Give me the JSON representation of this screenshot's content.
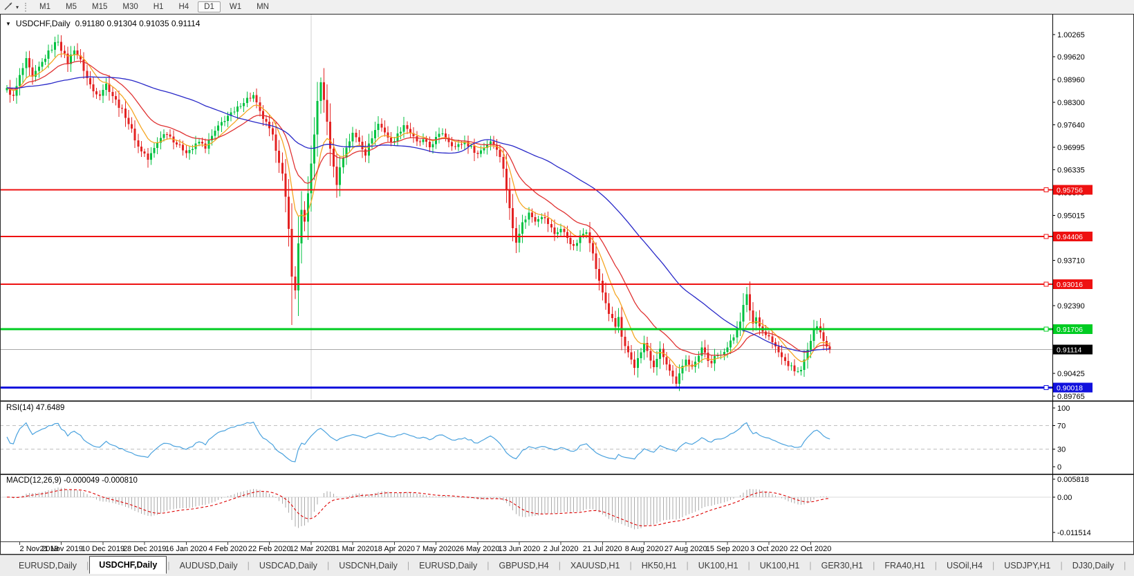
{
  "toolbar": {
    "tool_caret": "▾",
    "timeframes": [
      "M1",
      "M5",
      "M15",
      "M30",
      "H1",
      "H4",
      "D1",
      "W1",
      "MN"
    ],
    "active_timeframe": "D1"
  },
  "chart": {
    "dropdown_icon": "▼",
    "title": "USDCHF,Daily",
    "ohlc": "0.91180 0.91304 0.91035 0.91114"
  },
  "panels": {
    "rsi_label": "RSI(14) 47.6489",
    "macd_label": "MACD(12,26,9) -0.000049 -0.000810"
  },
  "tabs": {
    "items": [
      "EURUSD,Daily",
      "USDCHF,Daily",
      "AUDUSD,Daily",
      "USDCAD,Daily",
      "USDCNH,Daily",
      "EURUSD,Daily",
      "GBPUSD,H4",
      "XAUUSD,H1",
      "HK50,H1",
      "UK100,H1",
      "UK100,H1",
      "GER30,H1",
      "FRA40,H1",
      "USOil,H4",
      "USDJPY,H1",
      "DJ30,Daily",
      "CHINA300,H1",
      "USOil,H1"
    ],
    "active_index": 1,
    "scroll_left_icon": "◄",
    "scroll_right_icon": "►"
  },
  "chart_data": {
    "type": "candlestick",
    "symbol": "USDCHF",
    "timeframe": "Daily",
    "ohlc_display": {
      "open": "0.91180",
      "high": "0.91304",
      "low": "0.91035",
      "close": "0.91114"
    },
    "current_price": 0.91114,
    "price_line": {
      "label": "0.91114",
      "line_color": "#a8a8a8",
      "badge_color": "#000000"
    },
    "y_axis": {
      "tick_labels": [
        "1.00265",
        "0.99620",
        "0.98960",
        "0.98300",
        "0.97640",
        "0.96995",
        "0.96335",
        "0.95675",
        "0.95015",
        "0.93710",
        "0.92390",
        "0.90425",
        "0.89765"
      ]
    },
    "x_axis": {
      "date_labels": [
        "2 Nov 2019",
        "21 Nov 2019",
        "10 Dec 2019",
        "28 Dec 2019",
        "16 Jan 2020",
        "4 Feb 2020",
        "22 Feb 2020",
        "12 Mar 2020",
        "31 Mar 2020",
        "18 Apr 2020",
        "7 May 2020",
        "26 May 2020",
        "13 Jun 2020",
        "2 Jul 2020",
        "21 Jul 2020",
        "8 Aug 2020",
        "27 Aug 2020",
        "15 Sep 2020",
        "3 Oct 2020",
        "22 Oct 2020"
      ],
      "first_tick_candle_index": 4,
      "candles_per_tick": 13
    },
    "hlines": [
      {
        "value": 0.95756,
        "label": "0.95756",
        "color": "#ee1111",
        "width": 2
      },
      {
        "value": 0.94406,
        "label": "0.94406",
        "color": "#ee1111",
        "width": 2
      },
      {
        "value": 0.93016,
        "label": "0.93016",
        "color": "#ee1111",
        "width": 2
      },
      {
        "value": 0.91706,
        "label": "0.91706",
        "color": "#00cc22",
        "width": 3
      },
      {
        "value": 0.90018,
        "label": "0.90018",
        "color": "#1111dd",
        "width": 3
      }
    ],
    "vertical_line_candle_index": 95,
    "candles": {
      "count": 258,
      "up_color": "#00c241",
      "down_color": "#e32222",
      "waypoints": [
        [
          0,
          0.9868
        ],
        [
          2,
          0.9845
        ],
        [
          4,
          0.9905
        ],
        [
          6,
          0.9952
        ],
        [
          8,
          0.99
        ],
        [
          10,
          0.993
        ],
        [
          13,
          0.9975
        ],
        [
          15,
          1.0
        ],
        [
          16,
          1.001
        ],
        [
          17,
          0.9985
        ],
        [
          19,
          0.9945
        ],
        [
          21,
          0.9985
        ],
        [
          23,
          0.995
        ],
        [
          25,
          0.99
        ],
        [
          27,
          0.9862
        ],
        [
          29,
          0.9855
        ],
        [
          31,
          0.9882
        ],
        [
          33,
          0.985
        ],
        [
          35,
          0.982
        ],
        [
          37,
          0.979
        ],
        [
          39,
          0.9748
        ],
        [
          41,
          0.97
        ],
        [
          43,
          0.968
        ],
        [
          44,
          0.9663
        ],
        [
          46,
          0.9695
        ],
        [
          48,
          0.973
        ],
        [
          50,
          0.9742
        ],
        [
          52,
          0.972
        ],
        [
          54,
          0.97
        ],
        [
          56,
          0.9688
        ],
        [
          58,
          0.9695
        ],
        [
          60,
          0.9715
        ],
        [
          62,
          0.97
        ],
        [
          65,
          0.9745
        ],
        [
          67,
          0.977
        ],
        [
          69,
          0.979
        ],
        [
          71,
          0.98
        ],
        [
          73,
          0.9825
        ],
        [
          75,
          0.984
        ],
        [
          77,
          0.9848
        ],
        [
          79,
          0.98
        ],
        [
          81,
          0.9768
        ],
        [
          83,
          0.973
        ],
        [
          85,
          0.966
        ],
        [
          86,
          0.962
        ],
        [
          87,
          0.955
        ],
        [
          88,
          0.946
        ],
        [
          89,
          0.933
        ],
        [
          90,
          0.928
        ],
        [
          91,
          0.942
        ],
        [
          92,
          0.952
        ],
        [
          93,
          0.948
        ],
        [
          94,
          0.956
        ],
        [
          95,
          0.965
        ],
        [
          96,
          0.974
        ],
        [
          97,
          0.983
        ],
        [
          98,
          0.9888
        ],
        [
          99,
          0.984
        ],
        [
          100,
          0.9768
        ],
        [
          101,
          0.97
        ],
        [
          102,
          0.964
        ],
        [
          103,
          0.9595
        ],
        [
          104,
          0.964
        ],
        [
          106,
          0.97
        ],
        [
          108,
          0.9738
        ],
        [
          110,
          0.9718
        ],
        [
          112,
          0.968
        ],
        [
          114,
          0.973
        ],
        [
          116,
          0.9768
        ],
        [
          118,
          0.9745
        ],
        [
          120,
          0.9712
        ],
        [
          122,
          0.9735
        ],
        [
          124,
          0.9765
        ],
        [
          126,
          0.9742
        ],
        [
          128,
          0.9712
        ],
        [
          130,
          0.9718
        ],
        [
          132,
          0.97
        ],
        [
          134,
          0.9725
        ],
        [
          136,
          0.9742
        ],
        [
          138,
          0.9718
        ],
        [
          140,
          0.97
        ],
        [
          143,
          0.9715
        ],
        [
          145,
          0.9698
        ],
        [
          147,
          0.968
        ],
        [
          149,
          0.97
        ],
        [
          151,
          0.9718
        ],
        [
          153,
          0.9698
        ],
        [
          155,
          0.964
        ],
        [
          156,
          0.958
        ],
        [
          157,
          0.952
        ],
        [
          158,
          0.9465
        ],
        [
          159,
          0.9428
        ],
        [
          161,
          0.9478
        ],
        [
          163,
          0.9508
        ],
        [
          165,
          0.9488
        ],
        [
          167,
          0.9502
        ],
        [
          169,
          0.9478
        ],
        [
          171,
          0.9448
        ],
        [
          173,
          0.9462
        ],
        [
          175,
          0.9438
        ],
        [
          177,
          0.9408
        ],
        [
          179,
          0.9438
        ],
        [
          181,
          0.9458
        ],
        [
          182,
          0.9428
        ],
        [
          183,
          0.9388
        ],
        [
          184,
          0.9348
        ],
        [
          185,
          0.9308
        ],
        [
          186,
          0.9278
        ],
        [
          187,
          0.9248
        ],
        [
          188,
          0.9218
        ],
        [
          189,
          0.9198
        ],
        [
          190,
          0.9178
        ],
        [
          191,
          0.9205
        ],
        [
          192,
          0.9148
        ],
        [
          193,
          0.9118
        ],
        [
          194,
          0.9098
        ],
        [
          195,
          0.9078
        ],
        [
          196,
          0.9058
        ],
        [
          197,
          0.9088
        ],
        [
          198,
          0.9108
        ],
        [
          199,
          0.9128
        ],
        [
          200,
          0.9108
        ],
        [
          201,
          0.9078
        ],
        [
          202,
          0.9058
        ],
        [
          203,
          0.9088
        ],
        [
          204,
          0.9108
        ],
        [
          205,
          0.9092
        ],
        [
          206,
          0.9068
        ],
        [
          207,
          0.9048
        ],
        [
          208,
          0.9028
        ],
        [
          209,
          0.9008
        ],
        [
          210,
          0.9038
        ],
        [
          211,
          0.9068
        ],
        [
          212,
          0.9088
        ],
        [
          213,
          0.9072
        ],
        [
          214,
          0.9058
        ],
        [
          215,
          0.9082
        ],
        [
          216,
          0.9098
        ],
        [
          217,
          0.9118
        ],
        [
          218,
          0.9102
        ],
        [
          219,
          0.9082
        ],
        [
          220,
          0.9068
        ],
        [
          221,
          0.9088
        ],
        [
          223,
          0.9102
        ],
        [
          225,
          0.9118
        ],
        [
          227,
          0.9148
        ],
        [
          229,
          0.9198
        ],
        [
          230,
          0.9238
        ],
        [
          231,
          0.9268
        ],
        [
          232,
          0.9228
        ],
        [
          233,
          0.9188
        ],
        [
          234,
          0.9205
        ],
        [
          236,
          0.9165
        ],
        [
          238,
          0.9148
        ],
        [
          240,
          0.9118
        ],
        [
          242,
          0.9088
        ],
        [
          244,
          0.9068
        ],
        [
          246,
          0.9052
        ],
        [
          247,
          0.9045
        ],
        [
          248,
          0.9058
        ],
        [
          249,
          0.9078
        ],
        [
          250,
          0.9108
        ],
        [
          251,
          0.9138
        ],
        [
          252,
          0.9162
        ],
        [
          253,
          0.9185
        ],
        [
          254,
          0.9168
        ],
        [
          255,
          0.9138
        ],
        [
          256,
          0.912
        ],
        [
          257,
          0.91114
        ]
      ],
      "wick_overrides": {
        "16": {
          "high": 1.00265
        },
        "89": {
          "low": 0.9183
        },
        "98": {
          "high": 0.99015
        },
        "209": {
          "low": 0.89985
        },
        "253": {
          "high": 0.91955
        }
      }
    },
    "moving_averages": [
      {
        "method": "ema",
        "period": 9,
        "color": "#f5a623"
      },
      {
        "method": "ema",
        "period": 21,
        "color": "#e03232"
      },
      {
        "method": "sma",
        "period": 55,
        "color": "#2828c8"
      }
    ],
    "rsi": {
      "period": 14,
      "value": 47.6489,
      "color": "#4aa2de",
      "levels": [
        70,
        30
      ],
      "scale_labels": [
        "100",
        "70",
        "30",
        "0"
      ]
    },
    "macd": {
      "fast": 12,
      "slow": 26,
      "signal": 9,
      "main_value": -4.9e-05,
      "signal_value": -0.00081,
      "hist_color": "#aaaaaa",
      "signal_color": "#dd0000",
      "scale_labels": [
        "0.005818",
        "0.00",
        "-0.011514"
      ],
      "scale_max": 0.005818,
      "scale_min": -0.011514
    }
  }
}
